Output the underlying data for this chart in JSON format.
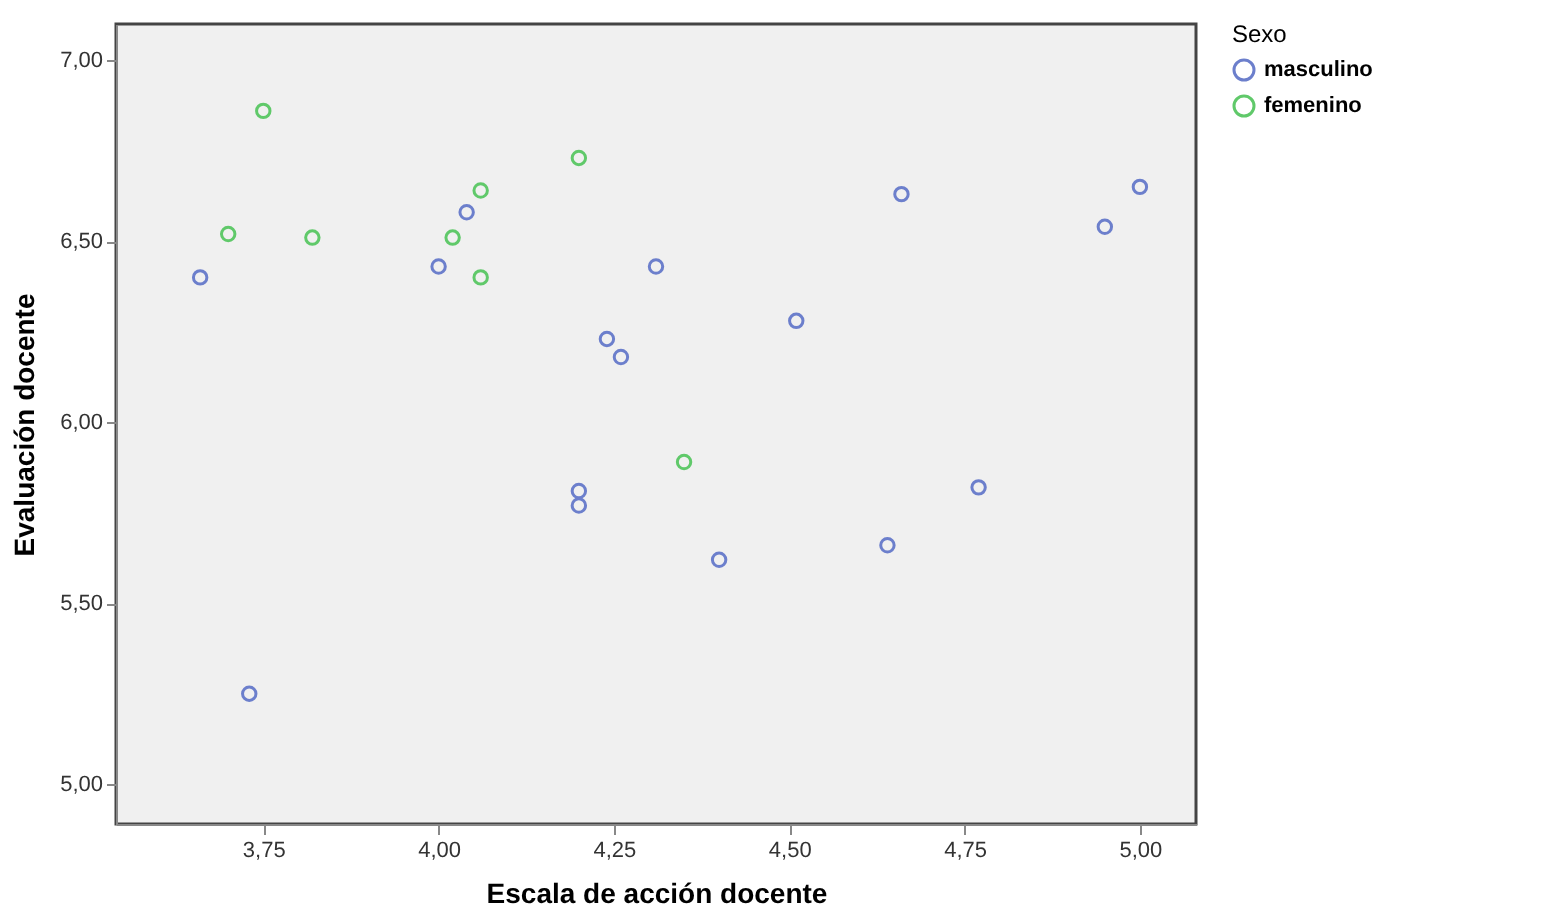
{
  "chart_data": {
    "type": "scatter",
    "xlabel": "Escala de acción docente",
    "ylabel": "Evaluación docente",
    "legend_title": "Sexo",
    "legend": "top right",
    "marker": "circle",
    "grid": false,
    "xlim": [
      3.54,
      5.08
    ],
    "xticks": [
      {
        "value": 3.75,
        "label": "3,75"
      },
      {
        "value": 4.0,
        "label": "4,00"
      },
      {
        "value": 4.25,
        "label": "4,25"
      },
      {
        "value": 4.5,
        "label": "4,50"
      },
      {
        "value": 4.75,
        "label": "4,75"
      },
      {
        "value": 5.0,
        "label": "5,00"
      }
    ],
    "ylim": [
      4.89,
      7.1
    ],
    "yticks": [
      {
        "value": 5.0,
        "label": "5,00"
      },
      {
        "value": 5.5,
        "label": "5,50"
      },
      {
        "value": 6.0,
        "label": "6,00"
      },
      {
        "value": 6.5,
        "label": "6,50"
      },
      {
        "value": 7.0,
        "label": "7,00"
      }
    ],
    "series": [
      {
        "name": "masculino",
        "color": "#6c7fcc",
        "x": [
          3.66,
          3.73,
          4.0,
          4.04,
          4.24,
          4.26,
          4.31,
          4.51,
          4.2,
          4.2,
          4.4,
          4.64,
          4.77,
          4.66,
          4.95,
          5.0
        ],
        "values": [
          6.4,
          5.25,
          6.43,
          6.58,
          6.23,
          6.18,
          6.43,
          6.28,
          5.81,
          5.77,
          5.62,
          5.66,
          5.82,
          6.63,
          6.54,
          6.65
        ]
      },
      {
        "name": "femenino",
        "color": "#60c96a",
        "x": [
          3.7,
          3.75,
          3.82,
          4.02,
          4.06,
          4.06,
          4.2,
          4.35
        ],
        "values": [
          6.52,
          6.86,
          6.51,
          6.51,
          6.64,
          6.4,
          6.73,
          5.89
        ]
      }
    ]
  }
}
